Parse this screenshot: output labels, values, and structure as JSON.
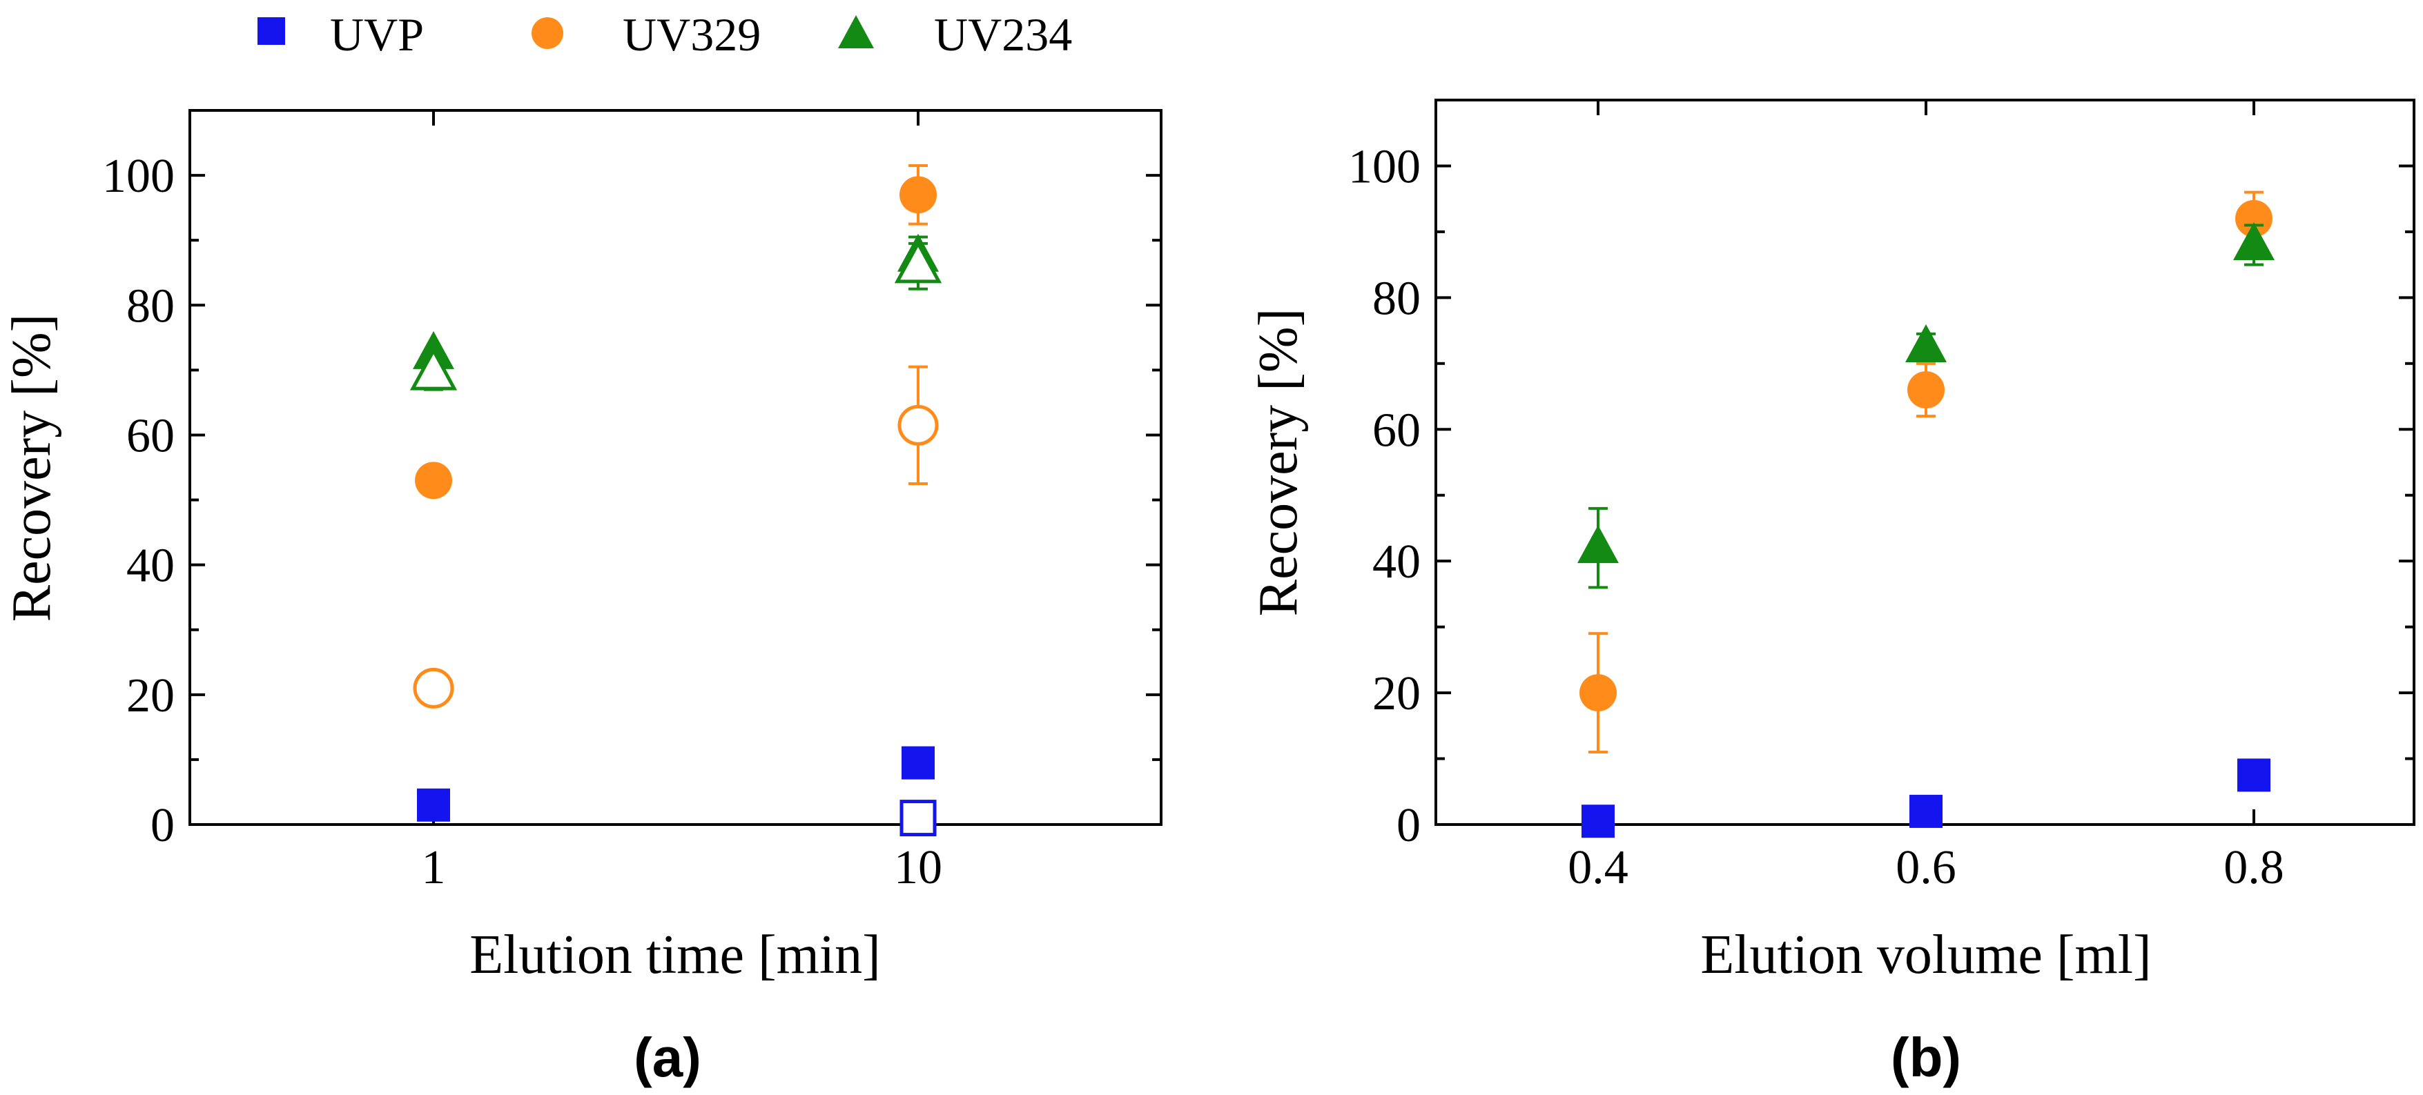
{
  "legend": {
    "items": [
      {
        "label": "UVP",
        "color": "#1414ee",
        "marker": "square"
      },
      {
        "label": "UV329",
        "color": "#ff8c1a",
        "marker": "circle"
      },
      {
        "label": "UV234",
        "color": "#138a13",
        "marker": "triangle"
      }
    ]
  },
  "chart_data": [
    {
      "type": "scatter",
      "panel": "(a)",
      "xlabel": "Elution time [min]",
      "ylabel": "Recovery [%]",
      "x_categories": [
        "1",
        "10"
      ],
      "ylim": [
        0,
        110
      ],
      "yticks": [
        "0",
        "20",
        "40",
        "60",
        "80",
        "100"
      ],
      "series": [
        {
          "name": "UVP",
          "fill": "solid",
          "marker": "square",
          "color": "#1414ee",
          "points": [
            {
              "x": "1",
              "y": 3,
              "err": 0
            },
            {
              "x": "10",
              "y": 9.5,
              "err": 0
            }
          ]
        },
        {
          "name": "UVP",
          "fill": "open",
          "marker": "square",
          "color": "#1414ee",
          "points": [
            {
              "x": "10",
              "y": 1,
              "err": 0
            }
          ]
        },
        {
          "name": "UV329",
          "fill": "solid",
          "marker": "circle",
          "color": "#ff8c1a",
          "points": [
            {
              "x": "1",
              "y": 53,
              "err": 0
            },
            {
              "x": "10",
              "y": 97,
              "err": 4.5
            }
          ]
        },
        {
          "name": "UV329",
          "fill": "open",
          "marker": "circle",
          "color": "#ff8c1a",
          "points": [
            {
              "x": "1",
              "y": 21,
              "err": 0
            },
            {
              "x": "10",
              "y": 61.5,
              "err": 9
            }
          ]
        },
        {
          "name": "UV234",
          "fill": "solid",
          "marker": "triangle",
          "color": "#138a13",
          "points": [
            {
              "x": "1",
              "y": 72.5,
              "err": 0
            },
            {
              "x": "10",
              "y": 87.5,
              "err": 3
            }
          ]
        },
        {
          "name": "UV234",
          "fill": "open",
          "marker": "triangle",
          "color": "#138a13",
          "points": [
            {
              "x": "1",
              "y": 69.5,
              "err": 2.5
            },
            {
              "x": "10",
              "y": 86,
              "err": 3.5
            }
          ]
        }
      ]
    },
    {
      "type": "scatter",
      "panel": "(b)",
      "xlabel": "Elution volume  [ml]",
      "ylabel": "Recovery [%]",
      "x_categories": [
        "0.4",
        "0.6",
        "0.8"
      ],
      "ylim": [
        0,
        110
      ],
      "yticks": [
        "0",
        "20",
        "40",
        "60",
        "80",
        "100"
      ],
      "series": [
        {
          "name": "UVP",
          "fill": "solid",
          "marker": "square",
          "color": "#1414ee",
          "points": [
            {
              "x": "0.4",
              "y": 0.5,
              "err": 0
            },
            {
              "x": "0.6",
              "y": 2,
              "err": 0
            },
            {
              "x": "0.8",
              "y": 7.5,
              "err": 0
            }
          ]
        },
        {
          "name": "UV329",
          "fill": "solid",
          "marker": "circle",
          "color": "#ff8c1a",
          "points": [
            {
              "x": "0.4",
              "y": 20,
              "err": 9
            },
            {
              "x": "0.6",
              "y": 66,
              "err": 4
            },
            {
              "x": "0.8",
              "y": 92,
              "err": 4
            }
          ]
        },
        {
          "name": "UV234",
          "fill": "solid",
          "marker": "triangle",
          "color": "#138a13",
          "points": [
            {
              "x": "0.4",
              "y": 42,
              "err": 6
            },
            {
              "x": "0.6",
              "y": 72.5,
              "err": 2
            },
            {
              "x": "0.8",
              "y": 88,
              "err": 3
            }
          ]
        }
      ]
    }
  ]
}
